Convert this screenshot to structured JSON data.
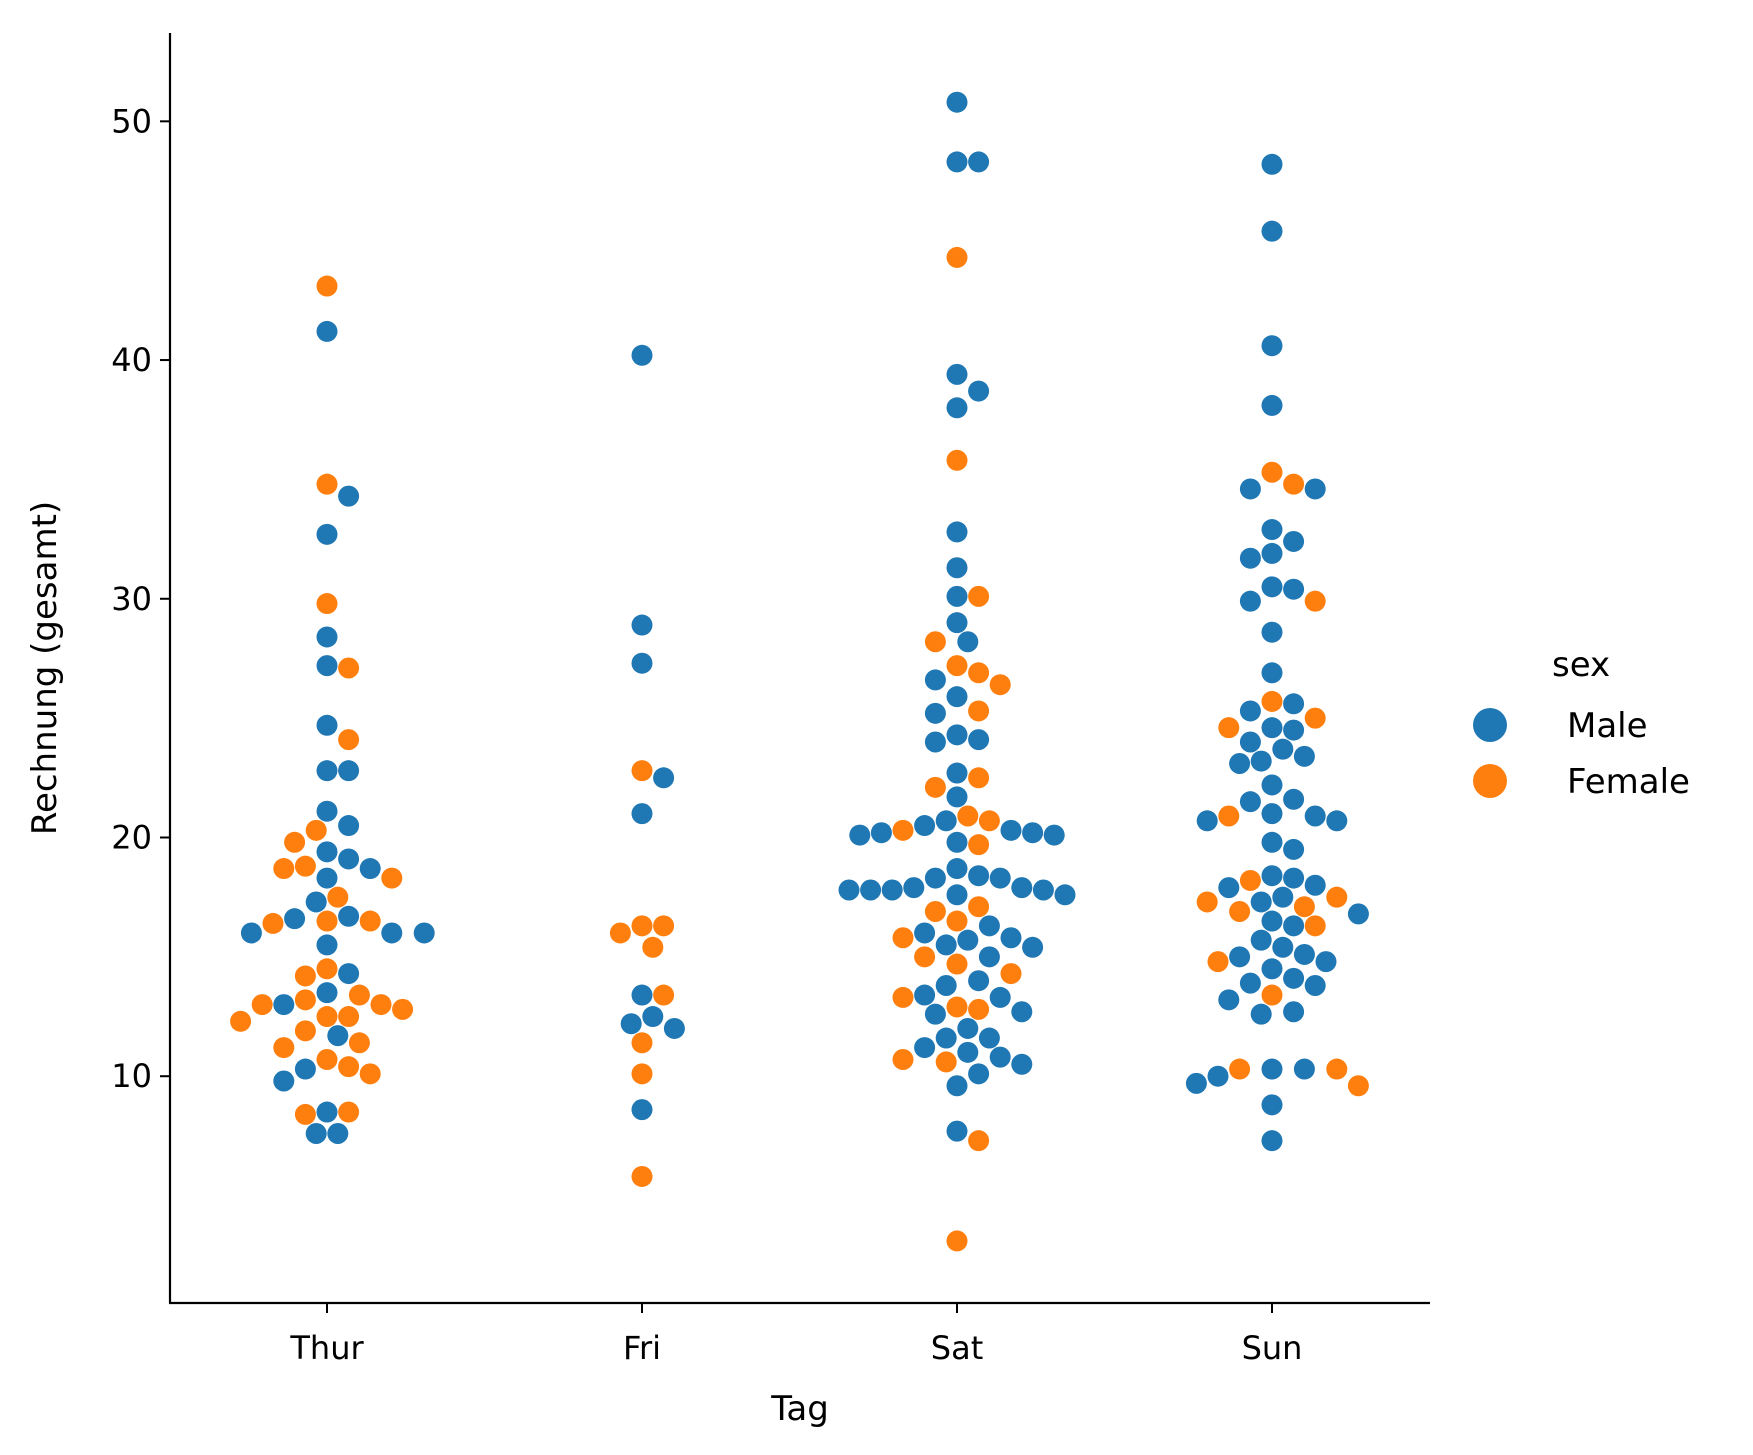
{
  "chart_data": {
    "type": "scatter",
    "subtype": "swarm",
    "xlabel": "Tag",
    "ylabel": "Rechnung (gesamt)",
    "categories": [
      "Thur",
      "Fri",
      "Sat",
      "Sun"
    ],
    "y_ticks": [
      10,
      20,
      30,
      40,
      50
    ],
    "ylim": [
      0.5,
      53.7
    ],
    "grid": false,
    "legend": {
      "title": "sex",
      "placement": "right"
    },
    "series": [
      {
        "name": "Male",
        "color": "#1f77b4",
        "points": [
          {
            "x": "Thur",
            "y": 41.2
          },
          {
            "x": "Thur",
            "y": 34.3
          },
          {
            "x": "Thur",
            "y": 32.7
          },
          {
            "x": "Thur",
            "y": 28.4
          },
          {
            "x": "Thur",
            "y": 27.2
          },
          {
            "x": "Thur",
            "y": 24.7
          },
          {
            "x": "Thur",
            "y": 22.8
          },
          {
            "x": "Thur",
            "y": 22.8
          },
          {
            "x": "Thur",
            "y": 21.1
          },
          {
            "x": "Thur",
            "y": 20.5
          },
          {
            "x": "Thur",
            "y": 19.4
          },
          {
            "x": "Thur",
            "y": 19.1
          },
          {
            "x": "Thur",
            "y": 18.7
          },
          {
            "x": "Thur",
            "y": 18.3
          },
          {
            "x": "Thur",
            "y": 17.3
          },
          {
            "x": "Thur",
            "y": 16.6
          },
          {
            "x": "Thur",
            "y": 16.7
          },
          {
            "x": "Thur",
            "y": 16.0
          },
          {
            "x": "Thur",
            "y": 16.0
          },
          {
            "x": "Thur",
            "y": 16.0
          },
          {
            "x": "Thur",
            "y": 15.5
          },
          {
            "x": "Thur",
            "y": 14.3
          },
          {
            "x": "Thur",
            "y": 13.5
          },
          {
            "x": "Thur",
            "y": 13.0
          },
          {
            "x": "Thur",
            "y": 11.7
          },
          {
            "x": "Thur",
            "y": 10.3
          },
          {
            "x": "Thur",
            "y": 9.8
          },
          {
            "x": "Thur",
            "y": 8.5
          },
          {
            "x": "Thur",
            "y": 7.6
          },
          {
            "x": "Thur",
            "y": 7.6
          },
          {
            "x": "Fri",
            "y": 40.2
          },
          {
            "x": "Fri",
            "y": 28.9
          },
          {
            "x": "Fri",
            "y": 27.3
          },
          {
            "x": "Fri",
            "y": 22.5
          },
          {
            "x": "Fri",
            "y": 21.0
          },
          {
            "x": "Fri",
            "y": 13.4
          },
          {
            "x": "Fri",
            "y": 12.5
          },
          {
            "x": "Fri",
            "y": 12.2
          },
          {
            "x": "Fri",
            "y": 12.0
          },
          {
            "x": "Fri",
            "y": 8.6
          },
          {
            "x": "Sat",
            "y": 50.8
          },
          {
            "x": "Sat",
            "y": 48.3
          },
          {
            "x": "Sat",
            "y": 48.3
          },
          {
            "x": "Sat",
            "y": 39.4
          },
          {
            "x": "Sat",
            "y": 38.7
          },
          {
            "x": "Sat",
            "y": 38.0
          },
          {
            "x": "Sat",
            "y": 32.8
          },
          {
            "x": "Sat",
            "y": 31.3
          },
          {
            "x": "Sat",
            "y": 30.1
          },
          {
            "x": "Sat",
            "y": 29.0
          },
          {
            "x": "Sat",
            "y": 28.2
          },
          {
            "x": "Sat",
            "y": 26.6
          },
          {
            "x": "Sat",
            "y": 25.9
          },
          {
            "x": "Sat",
            "y": 25.2
          },
          {
            "x": "Sat",
            "y": 24.3
          },
          {
            "x": "Sat",
            "y": 24.1
          },
          {
            "x": "Sat",
            "y": 24.0
          },
          {
            "x": "Sat",
            "y": 22.7
          },
          {
            "x": "Sat",
            "y": 21.7
          },
          {
            "x": "Sat",
            "y": 20.7
          },
          {
            "x": "Sat",
            "y": 20.5
          },
          {
            "x": "Sat",
            "y": 20.3
          },
          {
            "x": "Sat",
            "y": 20.2
          },
          {
            "x": "Sat",
            "y": 20.2
          },
          {
            "x": "Sat",
            "y": 20.1
          },
          {
            "x": "Sat",
            "y": 20.1
          },
          {
            "x": "Sat",
            "y": 19.8
          },
          {
            "x": "Sat",
            "y": 18.7
          },
          {
            "x": "Sat",
            "y": 18.4
          },
          {
            "x": "Sat",
            "y": 18.3
          },
          {
            "x": "Sat",
            "y": 18.3
          },
          {
            "x": "Sat",
            "y": 17.9
          },
          {
            "x": "Sat",
            "y": 17.9
          },
          {
            "x": "Sat",
            "y": 17.8
          },
          {
            "x": "Sat",
            "y": 17.8
          },
          {
            "x": "Sat",
            "y": 17.8
          },
          {
            "x": "Sat",
            "y": 17.8
          },
          {
            "x": "Sat",
            "y": 17.6
          },
          {
            "x": "Sat",
            "y": 17.6
          },
          {
            "x": "Sat",
            "y": 16.3
          },
          {
            "x": "Sat",
            "y": 16.0
          },
          {
            "x": "Sat",
            "y": 15.8
          },
          {
            "x": "Sat",
            "y": 15.7
          },
          {
            "x": "Sat",
            "y": 15.5
          },
          {
            "x": "Sat",
            "y": 15.4
          },
          {
            "x": "Sat",
            "y": 15.0
          },
          {
            "x": "Sat",
            "y": 14.0
          },
          {
            "x": "Sat",
            "y": 13.8
          },
          {
            "x": "Sat",
            "y": 13.4
          },
          {
            "x": "Sat",
            "y": 13.3
          },
          {
            "x": "Sat",
            "y": 12.7
          },
          {
            "x": "Sat",
            "y": 12.6
          },
          {
            "x": "Sat",
            "y": 12.0
          },
          {
            "x": "Sat",
            "y": 11.6
          },
          {
            "x": "Sat",
            "y": 11.6
          },
          {
            "x": "Sat",
            "y": 11.2
          },
          {
            "x": "Sat",
            "y": 11.0
          },
          {
            "x": "Sat",
            "y": 10.8
          },
          {
            "x": "Sat",
            "y": 10.5
          },
          {
            "x": "Sat",
            "y": 10.1
          },
          {
            "x": "Sat",
            "y": 9.6
          },
          {
            "x": "Sat",
            "y": 7.7
          },
          {
            "x": "Sun",
            "y": 48.2
          },
          {
            "x": "Sun",
            "y": 45.4
          },
          {
            "x": "Sun",
            "y": 40.6
          },
          {
            "x": "Sun",
            "y": 38.1
          },
          {
            "x": "Sun",
            "y": 34.6
          },
          {
            "x": "Sun",
            "y": 34.6
          },
          {
            "x": "Sun",
            "y": 32.9
          },
          {
            "x": "Sun",
            "y": 32.4
          },
          {
            "x": "Sun",
            "y": 31.9
          },
          {
            "x": "Sun",
            "y": 31.7
          },
          {
            "x": "Sun",
            "y": 30.5
          },
          {
            "x": "Sun",
            "y": 30.4
          },
          {
            "x": "Sun",
            "y": 29.9
          },
          {
            "x": "Sun",
            "y": 28.6
          },
          {
            "x": "Sun",
            "y": 26.9
          },
          {
            "x": "Sun",
            "y": 25.6
          },
          {
            "x": "Sun",
            "y": 25.3
          },
          {
            "x": "Sun",
            "y": 24.6
          },
          {
            "x": "Sun",
            "y": 24.5
          },
          {
            "x": "Sun",
            "y": 24.0
          },
          {
            "x": "Sun",
            "y": 23.7
          },
          {
            "x": "Sun",
            "y": 23.4
          },
          {
            "x": "Sun",
            "y": 23.2
          },
          {
            "x": "Sun",
            "y": 23.1
          },
          {
            "x": "Sun",
            "y": 22.2
          },
          {
            "x": "Sun",
            "y": 21.6
          },
          {
            "x": "Sun",
            "y": 21.5
          },
          {
            "x": "Sun",
            "y": 21.0
          },
          {
            "x": "Sun",
            "y": 20.9
          },
          {
            "x": "Sun",
            "y": 20.7
          },
          {
            "x": "Sun",
            "y": 20.7
          },
          {
            "x": "Sun",
            "y": 19.8
          },
          {
            "x": "Sun",
            "y": 19.5
          },
          {
            "x": "Sun",
            "y": 18.4
          },
          {
            "x": "Sun",
            "y": 18.3
          },
          {
            "x": "Sun",
            "y": 18.0
          },
          {
            "x": "Sun",
            "y": 17.9
          },
          {
            "x": "Sun",
            "y": 17.5
          },
          {
            "x": "Sun",
            "y": 17.3
          },
          {
            "x": "Sun",
            "y": 16.8
          },
          {
            "x": "Sun",
            "y": 16.5
          },
          {
            "x": "Sun",
            "y": 16.3
          },
          {
            "x": "Sun",
            "y": 15.7
          },
          {
            "x": "Sun",
            "y": 15.4
          },
          {
            "x": "Sun",
            "y": 15.1
          },
          {
            "x": "Sun",
            "y": 15.0
          },
          {
            "x": "Sun",
            "y": 14.8
          },
          {
            "x": "Sun",
            "y": 14.5
          },
          {
            "x": "Sun",
            "y": 14.1
          },
          {
            "x": "Sun",
            "y": 13.9
          },
          {
            "x": "Sun",
            "y": 13.8
          },
          {
            "x": "Sun",
            "y": 13.2
          },
          {
            "x": "Sun",
            "y": 12.7
          },
          {
            "x": "Sun",
            "y": 12.6
          },
          {
            "x": "Sun",
            "y": 10.3
          },
          {
            "x": "Sun",
            "y": 10.3
          },
          {
            "x": "Sun",
            "y": 10.0
          },
          {
            "x": "Sun",
            "y": 9.7
          },
          {
            "x": "Sun",
            "y": 8.8
          },
          {
            "x": "Sun",
            "y": 7.3
          }
        ]
      },
      {
        "name": "Female",
        "color": "#ff7f0e",
        "points": [
          {
            "x": "Thur",
            "y": 43.1
          },
          {
            "x": "Thur",
            "y": 34.8
          },
          {
            "x": "Thur",
            "y": 29.8
          },
          {
            "x": "Thur",
            "y": 27.1
          },
          {
            "x": "Thur",
            "y": 24.1
          },
          {
            "x": "Thur",
            "y": 20.3
          },
          {
            "x": "Thur",
            "y": 19.8
          },
          {
            "x": "Thur",
            "y": 18.7
          },
          {
            "x": "Thur",
            "y": 18.8
          },
          {
            "x": "Thur",
            "y": 18.3
          },
          {
            "x": "Thur",
            "y": 17.5
          },
          {
            "x": "Thur",
            "y": 16.4
          },
          {
            "x": "Thur",
            "y": 16.5
          },
          {
            "x": "Thur",
            "y": 16.5
          },
          {
            "x": "Thur",
            "y": 14.5
          },
          {
            "x": "Thur",
            "y": 14.2
          },
          {
            "x": "Thur",
            "y": 13.4
          },
          {
            "x": "Thur",
            "y": 13.2
          },
          {
            "x": "Thur",
            "y": 13.0
          },
          {
            "x": "Thur",
            "y": 13.0
          },
          {
            "x": "Thur",
            "y": 12.8
          },
          {
            "x": "Thur",
            "y": 12.5
          },
          {
            "x": "Thur",
            "y": 12.5
          },
          {
            "x": "Thur",
            "y": 12.3
          },
          {
            "x": "Thur",
            "y": 11.9
          },
          {
            "x": "Thur",
            "y": 11.4
          },
          {
            "x": "Thur",
            "y": 11.2
          },
          {
            "x": "Thur",
            "y": 10.7
          },
          {
            "x": "Thur",
            "y": 10.4
          },
          {
            "x": "Thur",
            "y": 10.1
          },
          {
            "x": "Thur",
            "y": 8.5
          },
          {
            "x": "Thur",
            "y": 8.4
          },
          {
            "x": "Fri",
            "y": 22.8
          },
          {
            "x": "Fri",
            "y": 16.3
          },
          {
            "x": "Fri",
            "y": 16.3
          },
          {
            "x": "Fri",
            "y": 16.0
          },
          {
            "x": "Fri",
            "y": 15.4
          },
          {
            "x": "Fri",
            "y": 13.4
          },
          {
            "x": "Fri",
            "y": 11.4
          },
          {
            "x": "Fri",
            "y": 10.1
          },
          {
            "x": "Fri",
            "y": 5.8
          },
          {
            "x": "Sat",
            "y": 44.3
          },
          {
            "x": "Sat",
            "y": 35.8
          },
          {
            "x": "Sat",
            "y": 30.1
          },
          {
            "x": "Sat",
            "y": 28.2
          },
          {
            "x": "Sat",
            "y": 27.2
          },
          {
            "x": "Sat",
            "y": 26.9
          },
          {
            "x": "Sat",
            "y": 26.4
          },
          {
            "x": "Sat",
            "y": 25.3
          },
          {
            "x": "Sat",
            "y": 22.5
          },
          {
            "x": "Sat",
            "y": 22.1
          },
          {
            "x": "Sat",
            "y": 20.9
          },
          {
            "x": "Sat",
            "y": 20.7
          },
          {
            "x": "Sat",
            "y": 20.3
          },
          {
            "x": "Sat",
            "y": 19.7
          },
          {
            "x": "Sat",
            "y": 17.1
          },
          {
            "x": "Sat",
            "y": 16.9
          },
          {
            "x": "Sat",
            "y": 16.5
          },
          {
            "x": "Sat",
            "y": 15.8
          },
          {
            "x": "Sat",
            "y": 15.0
          },
          {
            "x": "Sat",
            "y": 14.7
          },
          {
            "x": "Sat",
            "y": 14.3
          },
          {
            "x": "Sat",
            "y": 13.3
          },
          {
            "x": "Sat",
            "y": 12.9
          },
          {
            "x": "Sat",
            "y": 12.8
          },
          {
            "x": "Sat",
            "y": 10.7
          },
          {
            "x": "Sat",
            "y": 10.6
          },
          {
            "x": "Sat",
            "y": 7.3
          },
          {
            "x": "Sat",
            "y": 3.1
          },
          {
            "x": "Sun",
            "y": 35.3
          },
          {
            "x": "Sun",
            "y": 34.8
          },
          {
            "x": "Sun",
            "y": 29.9
          },
          {
            "x": "Sun",
            "y": 25.7
          },
          {
            "x": "Sun",
            "y": 25.0
          },
          {
            "x": "Sun",
            "y": 24.6
          },
          {
            "x": "Sun",
            "y": 20.9
          },
          {
            "x": "Sun",
            "y": 18.2
          },
          {
            "x": "Sun",
            "y": 17.5
          },
          {
            "x": "Sun",
            "y": 17.3
          },
          {
            "x": "Sun",
            "y": 17.1
          },
          {
            "x": "Sun",
            "y": 16.9
          },
          {
            "x": "Sun",
            "y": 16.3
          },
          {
            "x": "Sun",
            "y": 14.8
          },
          {
            "x": "Sun",
            "y": 13.4
          },
          {
            "x": "Sun",
            "y": 10.3
          },
          {
            "x": "Sun",
            "y": 10.3
          },
          {
            "x": "Sun",
            "y": 9.6
          }
        ]
      }
    ]
  }
}
